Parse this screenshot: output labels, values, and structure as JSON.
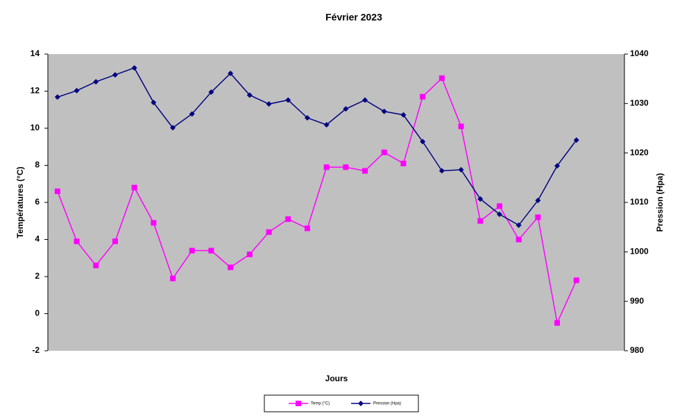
{
  "chart_data": {
    "type": "line",
    "title": "Février 2023",
    "x_label": "Jours",
    "y_label": "Températures (°C)",
    "y2_label": "Pression (Hpa)",
    "categories": [
      null,
      null,
      null,
      null,
      null,
      null,
      null,
      null,
      null,
      null,
      null,
      null,
      null,
      null,
      null,
      null,
      null,
      null,
      null,
      null,
      null,
      null,
      null,
      null,
      null,
      null,
      null,
      null,
      null,
      null
    ],
    "series": [
      {
        "name": "Temp (°C)",
        "color": "#ff00ff",
        "marker": "square",
        "axis": "y",
        "values": [
          6.6,
          3.9,
          2.6,
          3.9,
          6.8,
          4.9,
          1.9,
          3.4,
          3.4,
          2.5,
          3.2,
          4.4,
          5.1,
          4.6,
          7.9,
          7.9,
          7.7,
          8.7,
          8.1,
          11.7,
          12.7,
          10.1,
          5.0,
          5.8,
          4.0,
          5.2,
          -0.5,
          1.8,
          null,
          null
        ]
      },
      {
        "name": "Pression (Hpa)",
        "color": "#000080",
        "marker": "diamond",
        "axis": "y2",
        "values": [
          1031.3,
          1032.6,
          1034.4,
          1035.8,
          1037.2,
          1030.2,
          1025.1,
          1027.9,
          1032.3,
          1036.1,
          1031.7,
          1029.9,
          1030.7,
          1027.1,
          1025.7,
          1028.9,
          1030.7,
          1028.4,
          1027.7,
          1022.3,
          1016.4,
          1016.6,
          1010.7,
          1007.6,
          1005.4,
          1010.4,
          1017.4,
          1022.6,
          null,
          null
        ]
      }
    ],
    "ylim": [
      -2,
      14
    ],
    "yticks": [
      -2,
      0,
      2,
      4,
      6,
      8,
      10,
      12,
      14
    ],
    "y2lim": [
      980,
      1040
    ],
    "y2ticks": [
      980,
      990,
      1000,
      1010,
      1020,
      1030,
      1040
    ],
    "grid": false,
    "plot_background": "#c0c0c0",
    "legend": "bottom"
  }
}
